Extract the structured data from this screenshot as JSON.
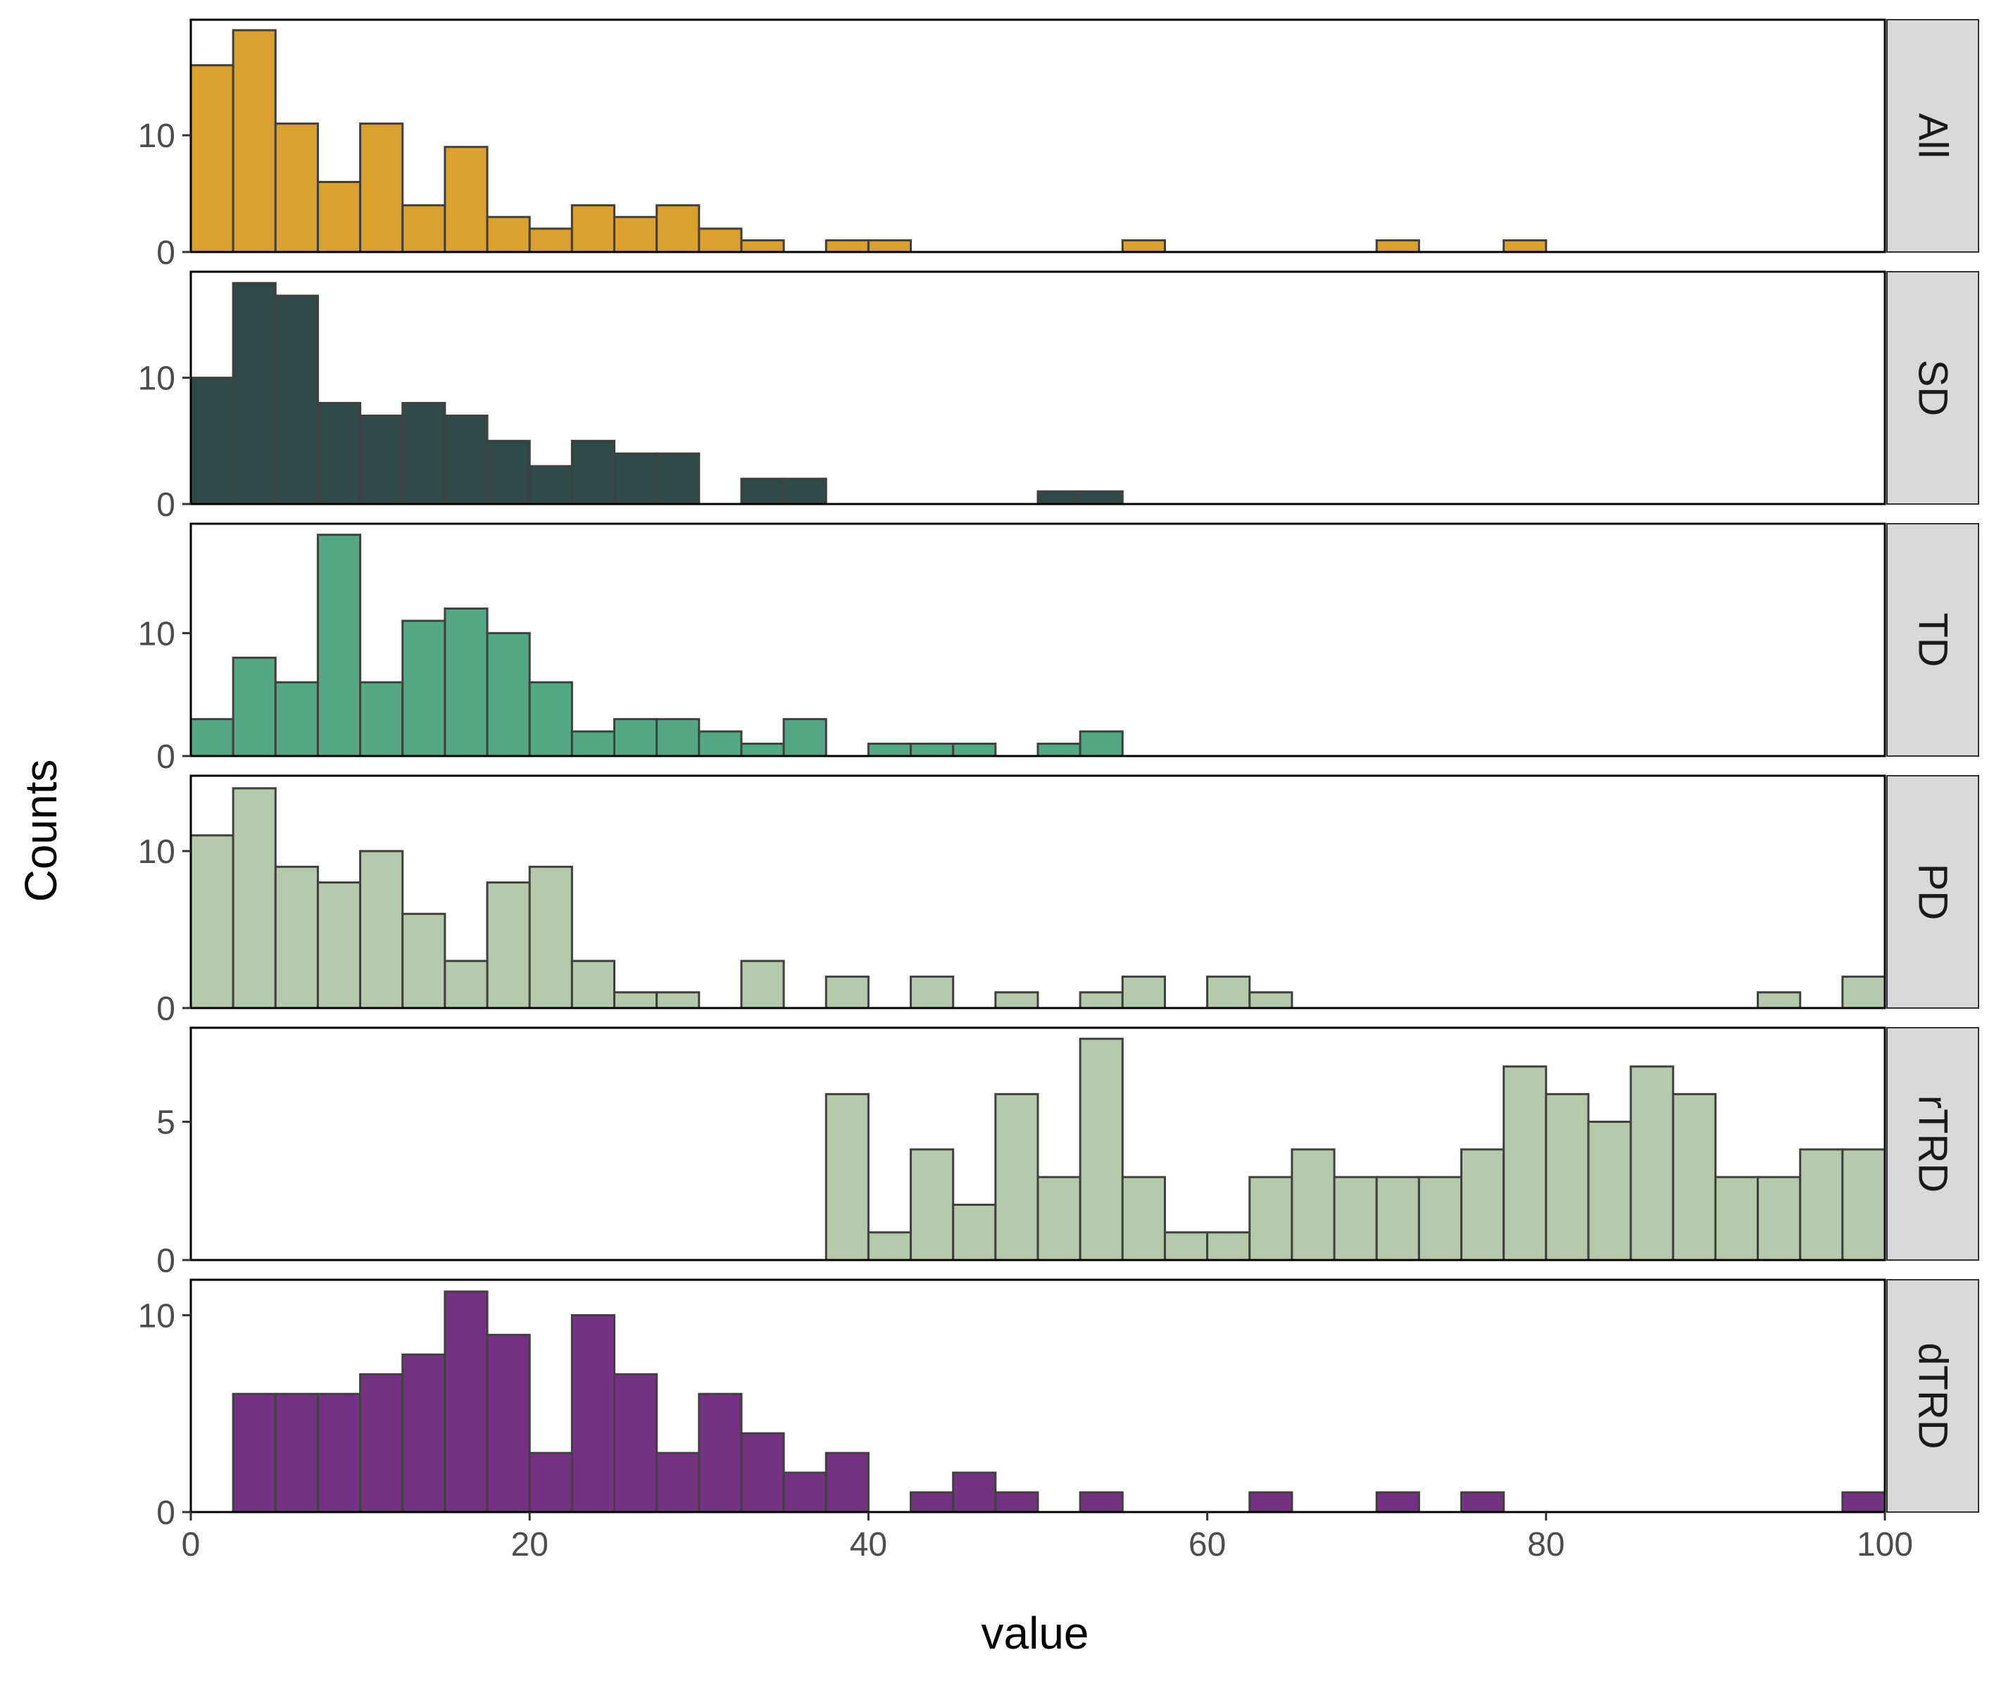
{
  "chart_data": {
    "type": "bar",
    "subtype": "faceted-histogram",
    "title": "",
    "xlabel": "value",
    "ylabel": "Counts",
    "xlim": [
      0,
      100
    ],
    "x_ticks": [
      "0",
      "20",
      "40",
      "60",
      "80",
      "100"
    ],
    "x_tick_values": [
      0,
      20,
      40,
      60,
      80,
      100
    ],
    "bin_width": 2.5,
    "grid": false,
    "legend": "none",
    "bar_outline_color": "#404040",
    "strip_color": "#d9d9d9",
    "panels": [
      {
        "name": "All",
        "color": "#daa030",
        "ylim": [
          0,
          19.9
        ],
        "y_ticks": [
          "0",
          "10"
        ],
        "y_tick_values": [
          0,
          10
        ],
        "bins": [
          {
            "x": 0,
            "count": 16
          },
          {
            "x": 2.5,
            "count": 19
          },
          {
            "x": 5,
            "count": 11
          },
          {
            "x": 7.5,
            "count": 6
          },
          {
            "x": 10,
            "count": 11
          },
          {
            "x": 12.5,
            "count": 4
          },
          {
            "x": 15,
            "count": 9
          },
          {
            "x": 17.5,
            "count": 3
          },
          {
            "x": 20,
            "count": 2
          },
          {
            "x": 22.5,
            "count": 4
          },
          {
            "x": 25,
            "count": 3
          },
          {
            "x": 27.5,
            "count": 4
          },
          {
            "x": 30,
            "count": 2
          },
          {
            "x": 32.5,
            "count": 1
          },
          {
            "x": 37.5,
            "count": 1
          },
          {
            "x": 40,
            "count": 1
          },
          {
            "x": 55,
            "count": 1
          },
          {
            "x": 70,
            "count": 1
          },
          {
            "x": 77.5,
            "count": 1
          }
        ]
      },
      {
        "name": "SD",
        "color": "#2f4a46",
        "ylim": [
          0,
          18.4
        ],
        "y_ticks": [
          "0",
          "10"
        ],
        "y_tick_values": [
          0,
          10
        ],
        "bins": [
          {
            "x": 0,
            "count": 10
          },
          {
            "x": 2.5,
            "count": 17.5
          },
          {
            "x": 5,
            "count": 16.5
          },
          {
            "x": 7.5,
            "count": 8
          },
          {
            "x": 10,
            "count": 7
          },
          {
            "x": 12.5,
            "count": 8
          },
          {
            "x": 15,
            "count": 7
          },
          {
            "x": 17.5,
            "count": 5
          },
          {
            "x": 20,
            "count": 3
          },
          {
            "x": 22.5,
            "count": 5
          },
          {
            "x": 25,
            "count": 4
          },
          {
            "x": 27.5,
            "count": 4
          },
          {
            "x": 32.5,
            "count": 2
          },
          {
            "x": 35,
            "count": 2
          },
          {
            "x": 50,
            "count": 1
          },
          {
            "x": 52.5,
            "count": 1
          }
        ]
      },
      {
        "name": "TD",
        "color": "#55a886",
        "ylim": [
          0,
          18.9
        ],
        "y_ticks": [
          "0",
          "10"
        ],
        "y_tick_values": [
          0,
          10
        ],
        "bins": [
          {
            "x": 0,
            "count": 3
          },
          {
            "x": 2.5,
            "count": 8
          },
          {
            "x": 5,
            "count": 6
          },
          {
            "x": 7.5,
            "count": 18
          },
          {
            "x": 10,
            "count": 6
          },
          {
            "x": 12.5,
            "count": 11
          },
          {
            "x": 15,
            "count": 12
          },
          {
            "x": 17.5,
            "count": 10
          },
          {
            "x": 20,
            "count": 6
          },
          {
            "x": 22.5,
            "count": 2
          },
          {
            "x": 25,
            "count": 3
          },
          {
            "x": 27.5,
            "count": 3
          },
          {
            "x": 30,
            "count": 2
          },
          {
            "x": 32.5,
            "count": 1
          },
          {
            "x": 35,
            "count": 3
          },
          {
            "x": 40,
            "count": 1
          },
          {
            "x": 42.5,
            "count": 1
          },
          {
            "x": 45,
            "count": 1
          },
          {
            "x": 50,
            "count": 1
          },
          {
            "x": 52.5,
            "count": 2
          }
        ]
      },
      {
        "name": "PD",
        "color": "#b5caab",
        "ylim": [
          0,
          14.8
        ],
        "y_ticks": [
          "0",
          "10"
        ],
        "y_tick_values": [
          0,
          10
        ],
        "bins": [
          {
            "x": 0,
            "count": 11
          },
          {
            "x": 2.5,
            "count": 14
          },
          {
            "x": 5,
            "count": 9
          },
          {
            "x": 7.5,
            "count": 8
          },
          {
            "x": 10,
            "count": 10
          },
          {
            "x": 12.5,
            "count": 6
          },
          {
            "x": 15,
            "count": 3
          },
          {
            "x": 17.5,
            "count": 8
          },
          {
            "x": 20,
            "count": 9
          },
          {
            "x": 22.5,
            "count": 3
          },
          {
            "x": 25,
            "count": 1
          },
          {
            "x": 27.5,
            "count": 1
          },
          {
            "x": 32.5,
            "count": 3
          },
          {
            "x": 37.5,
            "count": 2
          },
          {
            "x": 42.5,
            "count": 2
          },
          {
            "x": 47.5,
            "count": 1
          },
          {
            "x": 52.5,
            "count": 1
          },
          {
            "x": 55,
            "count": 2
          },
          {
            "x": 60,
            "count": 2
          },
          {
            "x": 62.5,
            "count": 1
          },
          {
            "x": 92.5,
            "count": 1
          },
          {
            "x": 97.5,
            "count": 2
          }
        ]
      },
      {
        "name": "rTRD",
        "color": "#b5caab",
        "ylim": [
          0,
          8.4
        ],
        "y_ticks": [
          "0",
          "5"
        ],
        "y_tick_values": [
          0,
          5
        ],
        "bins": [
          {
            "x": 37.5,
            "count": 6
          },
          {
            "x": 40,
            "count": 1
          },
          {
            "x": 42.5,
            "count": 4
          },
          {
            "x": 45,
            "count": 2
          },
          {
            "x": 47.5,
            "count": 6
          },
          {
            "x": 50,
            "count": 3
          },
          {
            "x": 52.5,
            "count": 8
          },
          {
            "x": 55,
            "count": 3
          },
          {
            "x": 57.5,
            "count": 1
          },
          {
            "x": 60,
            "count": 1
          },
          {
            "x": 62.5,
            "count": 3
          },
          {
            "x": 65,
            "count": 4
          },
          {
            "x": 67.5,
            "count": 3
          },
          {
            "x": 70,
            "count": 3
          },
          {
            "x": 72.5,
            "count": 3
          },
          {
            "x": 75,
            "count": 4
          },
          {
            "x": 77.5,
            "count": 7
          },
          {
            "x": 80,
            "count": 6
          },
          {
            "x": 82.5,
            "count": 5
          },
          {
            "x": 85,
            "count": 7
          },
          {
            "x": 87.5,
            "count": 6
          },
          {
            "x": 90,
            "count": 3
          },
          {
            "x": 92.5,
            "count": 3
          },
          {
            "x": 95,
            "count": 4
          },
          {
            "x": 97.5,
            "count": 4
          }
        ]
      },
      {
        "name": "dTRD",
        "color": "#753182",
        "ylim": [
          0,
          11.8
        ],
        "y_ticks": [
          "0",
          "10"
        ],
        "y_tick_values": [
          0,
          10
        ],
        "bins": [
          {
            "x": 2.5,
            "count": 6
          },
          {
            "x": 5,
            "count": 6
          },
          {
            "x": 7.5,
            "count": 6
          },
          {
            "x": 10,
            "count": 7
          },
          {
            "x": 12.5,
            "count": 8
          },
          {
            "x": 15,
            "count": 11.2
          },
          {
            "x": 17.5,
            "count": 9
          },
          {
            "x": 20,
            "count": 3
          },
          {
            "x": 22.5,
            "count": 10
          },
          {
            "x": 25,
            "count": 7
          },
          {
            "x": 27.5,
            "count": 3
          },
          {
            "x": 30,
            "count": 6
          },
          {
            "x": 32.5,
            "count": 4
          },
          {
            "x": 35,
            "count": 2
          },
          {
            "x": 37.5,
            "count": 3
          },
          {
            "x": 42.5,
            "count": 1
          },
          {
            "x": 45,
            "count": 2
          },
          {
            "x": 47.5,
            "count": 1
          },
          {
            "x": 52.5,
            "count": 1
          },
          {
            "x": 62.5,
            "count": 1
          },
          {
            "x": 70,
            "count": 1
          },
          {
            "x": 75,
            "count": 1
          },
          {
            "x": 97.5,
            "count": 1
          }
        ]
      }
    ]
  }
}
